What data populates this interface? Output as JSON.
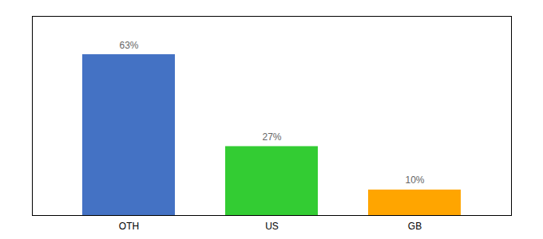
{
  "chart_data": {
    "type": "bar",
    "categories": [
      "OTH",
      "US",
      "GB"
    ],
    "values": [
      63,
      27,
      10
    ],
    "value_labels": [
      "63%",
      "27%",
      "10%"
    ],
    "colors": [
      "#4472C4",
      "#33CC33",
      "#FFA500"
    ],
    "ylim": [
      0,
      78
    ],
    "yticks": [],
    "data_labels": true,
    "tick_labels": "x",
    "grid": false
  }
}
